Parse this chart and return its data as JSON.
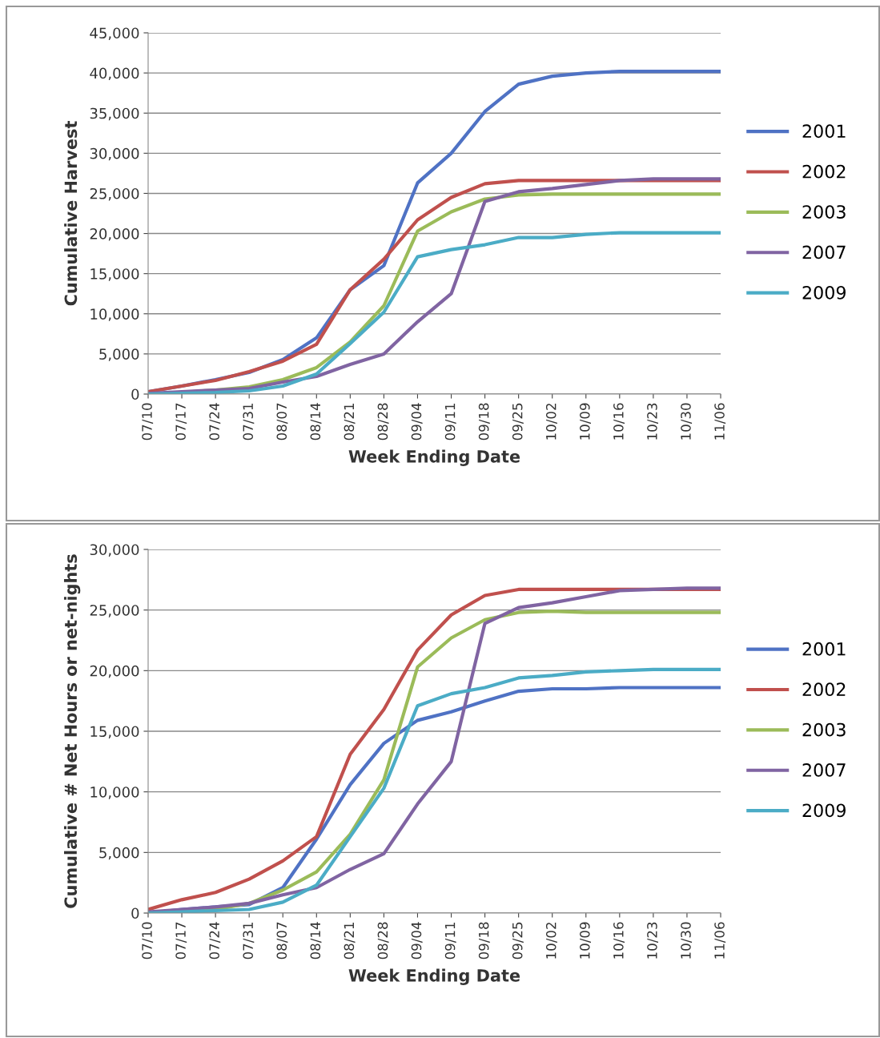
{
  "chart_data": [
    {
      "type": "line",
      "xlabel": "Week Ending Date",
      "ylabel": "Cumulative Harvest",
      "categories": [
        "07/10",
        "07/17",
        "07/24",
        "07/31",
        "08/07",
        "08/14",
        "08/21",
        "08/28",
        "09/04",
        "09/11",
        "09/18",
        "09/25",
        "10/02",
        "10/09",
        "10/16",
        "10/23",
        "10/30",
        "11/06"
      ],
      "ylim": [
        0,
        45000
      ],
      "yticks": [
        {
          "value": 0,
          "label": "0"
        },
        {
          "value": 5000,
          "label": "5,000"
        },
        {
          "value": 10000,
          "label": "10,000"
        },
        {
          "value": 15000,
          "label": "15,000"
        },
        {
          "value": 20000,
          "label": "20,000"
        },
        {
          "value": 25000,
          "label": "25,000"
        },
        {
          "value": 30000,
          "label": "30,000"
        },
        {
          "value": 35000,
          "label": "35,000"
        },
        {
          "value": 40000,
          "label": "40,000"
        },
        {
          "value": 45000,
          "label": "45,000"
        }
      ],
      "grid": "y",
      "legend": "right",
      "marker": "none",
      "line_style": "solid",
      "series": [
        {
          "name": "2001",
          "color": "#4f72c4",
          "values": [
            300,
            1000,
            1800,
            2700,
            4300,
            7000,
            13000,
            16000,
            26300,
            30000,
            35200,
            38600,
            39600,
            40000,
            40200,
            40200,
            40200,
            40200
          ]
        },
        {
          "name": "2002",
          "color": "#c0504d",
          "values": [
            300,
            1000,
            1700,
            2800,
            4100,
            6200,
            13000,
            16800,
            21700,
            24500,
            26200,
            26600,
            26600,
            26600,
            26600,
            26600,
            26600,
            26600
          ]
        },
        {
          "name": "2003",
          "color": "#9bbb59",
          "values": [
            0,
            200,
            500,
            900,
            1800,
            3300,
            6500,
            11000,
            20300,
            22700,
            24300,
            24800,
            24900,
            24900,
            24900,
            24900,
            24900,
            24900
          ]
        },
        {
          "name": "2007",
          "color": "#8064a2",
          "values": [
            100,
            300,
            500,
            700,
            1500,
            2200,
            3700,
            5000,
            9000,
            12500,
            24000,
            25200,
            25600,
            26100,
            26600,
            26800,
            26800,
            26800
          ]
        },
        {
          "name": "2009",
          "color": "#4bacc6",
          "values": [
            0,
            100,
            200,
            400,
            1000,
            2500,
            6300,
            10200,
            17100,
            18000,
            18600,
            19500,
            19500,
            19900,
            20100,
            20100,
            20100,
            20100
          ]
        }
      ]
    },
    {
      "type": "line",
      "xlabel": "Week Ending Date",
      "ylabel": "Cumulative # Net Hours or net-nights",
      "categories": [
        "07/10",
        "07/17",
        "07/24",
        "07/31",
        "08/07",
        "08/14",
        "08/21",
        "08/28",
        "09/04",
        "09/11",
        "09/18",
        "09/25",
        "10/02",
        "10/09",
        "10/16",
        "10/23",
        "10/30",
        "11/06"
      ],
      "ylim": [
        0,
        30000
      ],
      "yticks": [
        {
          "value": 0,
          "label": "0"
        },
        {
          "value": 5000,
          "label": "5,000"
        },
        {
          "value": 10000,
          "label": "10,000"
        },
        {
          "value": 15000,
          "label": "15,000"
        },
        {
          "value": 20000,
          "label": "20,000"
        },
        {
          "value": 25000,
          "label": "25,000"
        },
        {
          "value": 30000,
          "label": "30,000"
        }
      ],
      "grid": "y",
      "legend": "right",
      "marker": "none",
      "line_style": "solid",
      "series": [
        {
          "name": "2001",
          "color": "#4f72c4",
          "values": [
            0,
            300,
            500,
            700,
            2100,
            6100,
            10600,
            14000,
            15900,
            16600,
            17500,
            18300,
            18500,
            18500,
            18600,
            18600,
            18600,
            18600
          ]
        },
        {
          "name": "2002",
          "color": "#c0504d",
          "values": [
            300,
            1100,
            1700,
            2800,
            4300,
            6300,
            13100,
            16800,
            21700,
            24600,
            26200,
            26700,
            26700,
            26700,
            26700,
            26700,
            26700,
            26700
          ]
        },
        {
          "name": "2003",
          "color": "#9bbb59",
          "values": [
            0,
            100,
            300,
            800,
            1900,
            3400,
            6500,
            11000,
            20300,
            22700,
            24200,
            24800,
            24900,
            24800,
            24800,
            24800,
            24800,
            24800
          ]
        },
        {
          "name": "2007",
          "color": "#8064a2",
          "values": [
            100,
            300,
            500,
            800,
            1500,
            2100,
            3600,
            4900,
            9000,
            12500,
            23900,
            25200,
            25600,
            26100,
            26600,
            26700,
            26800,
            26800
          ]
        },
        {
          "name": "2009",
          "color": "#4bacc6",
          "values": [
            0,
            100,
            200,
            300,
            900,
            2300,
            6300,
            10300,
            17100,
            18100,
            18600,
            19400,
            19600,
            19900,
            20000,
            20100,
            20100,
            20100
          ]
        }
      ]
    }
  ]
}
